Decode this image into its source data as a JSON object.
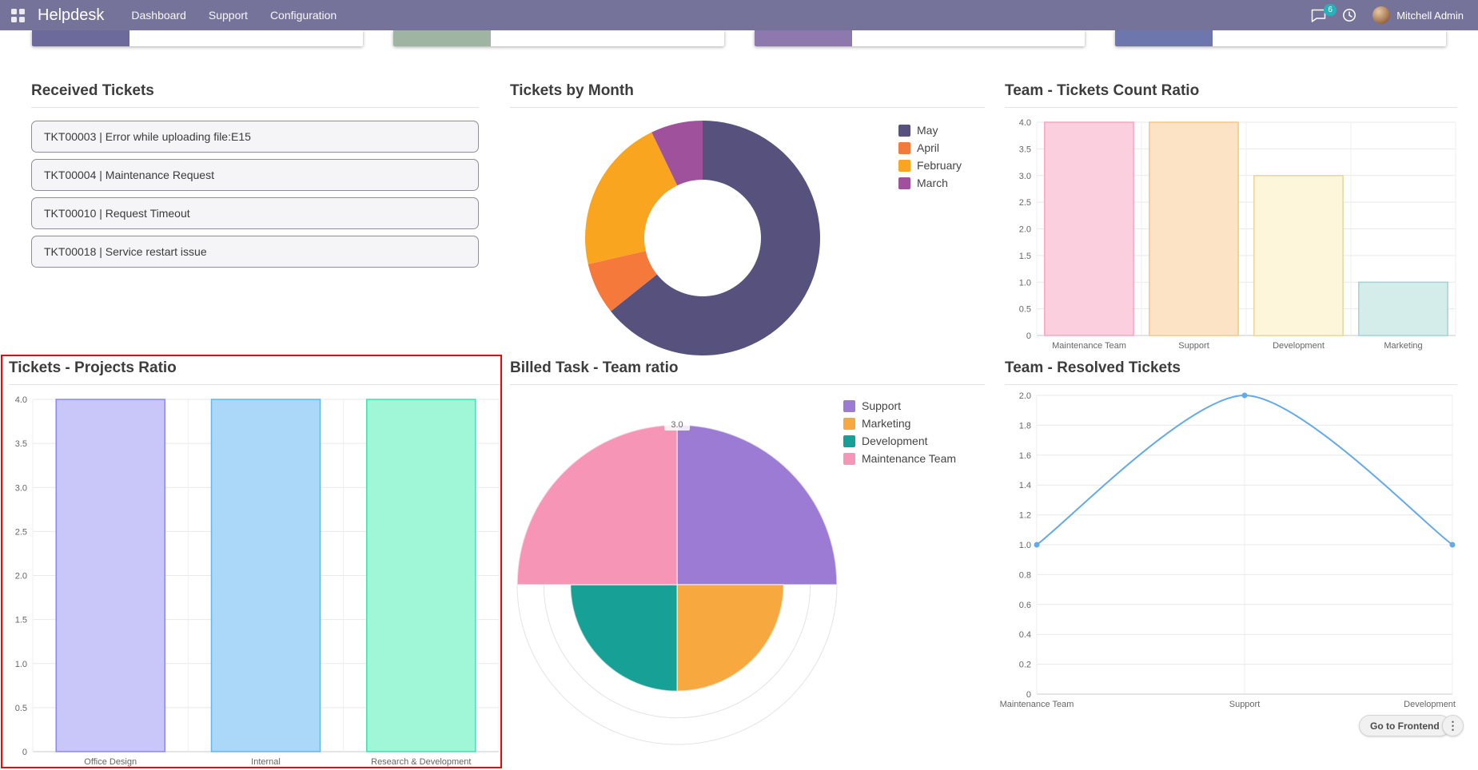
{
  "navbar": {
    "app_name": "Helpdesk",
    "menu": [
      "Dashboard",
      "Support",
      "Configuration"
    ],
    "messages_count": "6",
    "user_name": "Mitchell Admin"
  },
  "colors": {
    "navbar_bg": "#76739b",
    "badge_bg": "#23b3ba",
    "highlight": "#ff0000"
  },
  "top_cards": [
    {
      "color": "#6b6a9b"
    },
    {
      "color": "#9fb4a2"
    },
    {
      "color": "#8d79ad"
    },
    {
      "color": "#6d77ae"
    }
  ],
  "received_tickets": {
    "title": "Received Tickets",
    "items": [
      "TKT00003 | Error while uploading file:E15",
      "TKT00004 | Maintenance Request",
      "TKT00010 | Request Timeout",
      "TKT00018 | Service restart issue"
    ]
  },
  "footer": {
    "go_to_frontend_label": "Go to Frontend",
    "more_options_glyph": "⋮"
  },
  "chart_data": [
    {
      "type": "pie",
      "variant": "doughnut",
      "title": "Tickets by Month",
      "labels": [
        "May",
        "April",
        "February",
        "March"
      ],
      "values": [
        9,
        1,
        3,
        1
      ],
      "colors": [
        "#57517e",
        "#f4793b",
        "#f9a51f",
        "#a0519b"
      ],
      "legend_position": "right"
    },
    {
      "type": "bar",
      "title": "Team - Tickets Count Ratio",
      "categories": [
        "Maintenance Team",
        "Support",
        "Development",
        "Marketing"
      ],
      "values": [
        4,
        4,
        3,
        1
      ],
      "fills": [
        "#fbcfdd",
        "#fce3c5",
        "#fdf6da",
        "#d4ecea"
      ],
      "borders": [
        "#f7a6c0",
        "#f8c584",
        "#e9d795",
        "#9fd6d1"
      ],
      "ylim": [
        0,
        4
      ],
      "ytick_step": 0.5,
      "grid": true,
      "legend_position": "none"
    },
    {
      "type": "bar",
      "title": "Tickets - Projects Ratio",
      "categories": [
        "Office Design",
        "Internal",
        "Research & Development"
      ],
      "values": [
        4,
        4,
        4
      ],
      "fills": [
        "#c9c6f9",
        "#abd8f8",
        "#9ff7d8"
      ],
      "borders": [
        "#8c87f0",
        "#64b6f0",
        "#3fe0ae"
      ],
      "ylim": [
        0,
        4
      ],
      "ytick_step": 0.5,
      "grid": true,
      "legend_position": "none"
    },
    {
      "type": "pie",
      "variant": "polar-area",
      "title": "Billed Task - Team ratio",
      "labels": [
        "Support",
        "Marketing",
        "Development",
        "Maintenance Team"
      ],
      "values": [
        3,
        2,
        2,
        3
      ],
      "colors": [
        "#9c7bd4",
        "#f7a83f",
        "#16a096",
        "#f795b6"
      ],
      "rmax": 3,
      "rtick_label": "3.0",
      "legend_position": "right"
    },
    {
      "type": "line",
      "title": "Team - Resolved Tickets",
      "categories": [
        "Maintenance Team",
        "Support",
        "Development"
      ],
      "values": [
        1,
        2,
        1
      ],
      "line_color": "#64a9e8",
      "ylim": [
        0,
        2
      ],
      "ytick_step": 0.2,
      "grid": true,
      "legend_position": "none"
    }
  ]
}
